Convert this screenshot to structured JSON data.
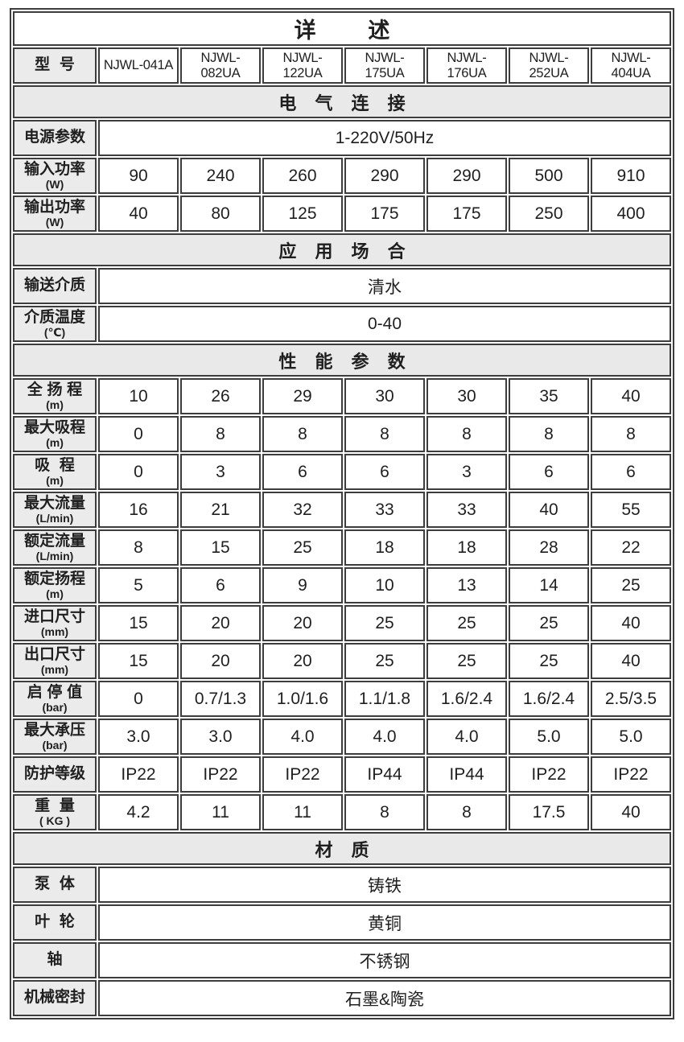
{
  "colors": {
    "border": "#3d3d3d",
    "label_background": "#ebebeb",
    "section_background": "#e9e9e9",
    "cell_background": "#ffffff",
    "text": "#1f1f1f"
  },
  "table": {
    "title": "详述",
    "column_count": 8,
    "rows": [
      {
        "type": "title",
        "text": "详述"
      },
      {
        "type": "model",
        "label": "型号",
        "unit": "",
        "values": [
          "NJWL-041A",
          "NJWL-082UA",
          "NJWL-122UA",
          "NJWL-175UA",
          "NJWL-176UA",
          "NJWL-252UA",
          "NJWL-404UA"
        ]
      },
      {
        "type": "section",
        "text": "电气连接"
      },
      {
        "type": "span",
        "label": "电源参数",
        "unit": "",
        "value": "1-220V/50Hz"
      },
      {
        "type": "data",
        "label": "输入功率",
        "unit": "(W)",
        "values": [
          "90",
          "240",
          "260",
          "290",
          "290",
          "500",
          "910"
        ]
      },
      {
        "type": "data",
        "label": "输出功率",
        "unit": "(W)",
        "values": [
          "40",
          "80",
          "125",
          "175",
          "175",
          "250",
          "400"
        ]
      },
      {
        "type": "section",
        "text": "应用场合"
      },
      {
        "type": "span",
        "label": "输送介质",
        "unit": "",
        "value": "清水"
      },
      {
        "type": "span",
        "label": "介质温度",
        "unit": "(℃)",
        "value": "0-40"
      },
      {
        "type": "section",
        "text": "性能参数"
      },
      {
        "type": "data",
        "label": "全扬程",
        "unit": "(m)",
        "values": [
          "10",
          "26",
          "29",
          "30",
          "30",
          "35",
          "40"
        ]
      },
      {
        "type": "data",
        "label": "最大吸程",
        "unit": "(m)",
        "values": [
          "0",
          "8",
          "8",
          "8",
          "8",
          "8",
          "8"
        ]
      },
      {
        "type": "data",
        "label": "吸程",
        "unit": "(m)",
        "values": [
          "0",
          "3",
          "6",
          "6",
          "3",
          "6",
          "6"
        ]
      },
      {
        "type": "data",
        "label": "最大流量",
        "unit": "(L/min)",
        "values": [
          "16",
          "21",
          "32",
          "33",
          "33",
          "40",
          "55"
        ]
      },
      {
        "type": "data",
        "label": "额定流量",
        "unit": "(L/min)",
        "values": [
          "8",
          "15",
          "25",
          "18",
          "18",
          "28",
          "22"
        ]
      },
      {
        "type": "data",
        "label": "额定扬程",
        "unit": "(m)",
        "values": [
          "5",
          "6",
          "9",
          "10",
          "13",
          "14",
          "25"
        ]
      },
      {
        "type": "data",
        "label": "进口尺寸",
        "unit": "(mm)",
        "values": [
          "15",
          "20",
          "20",
          "25",
          "25",
          "25",
          "40"
        ]
      },
      {
        "type": "data",
        "label": "出口尺寸",
        "unit": "(mm)",
        "values": [
          "15",
          "20",
          "20",
          "25",
          "25",
          "25",
          "40"
        ]
      },
      {
        "type": "data",
        "label": "启停值",
        "unit": "(bar)",
        "values": [
          "0",
          "0.7/1.3",
          "1.0/1.6",
          "1.1/1.8",
          "1.6/2.4",
          "1.6/2.4",
          "2.5/3.5"
        ]
      },
      {
        "type": "data",
        "label": "最大承压",
        "unit": "(bar)",
        "values": [
          "3.0",
          "3.0",
          "4.0",
          "4.0",
          "4.0",
          "5.0",
          "5.0"
        ]
      },
      {
        "type": "data",
        "label": "防护等级",
        "unit": "",
        "values": [
          "IP22",
          "IP22",
          "IP22",
          "IP44",
          "IP44",
          "IP22",
          "IP22"
        ]
      },
      {
        "type": "data",
        "label": "重量",
        "unit": "( KG )",
        "values": [
          "4.2",
          "11",
          "11",
          "8",
          "8",
          "17.5",
          "40"
        ]
      },
      {
        "type": "section",
        "text": "材质"
      },
      {
        "type": "span",
        "label": "泵体",
        "unit": "",
        "value": "铸铁"
      },
      {
        "type": "span",
        "label": "叶轮",
        "unit": "",
        "value": "黄铜"
      },
      {
        "type": "span",
        "label": "轴",
        "unit": "",
        "value": "不锈钢"
      },
      {
        "type": "span",
        "label": "机械密封",
        "unit": "",
        "value": "石墨&陶瓷"
      }
    ]
  }
}
